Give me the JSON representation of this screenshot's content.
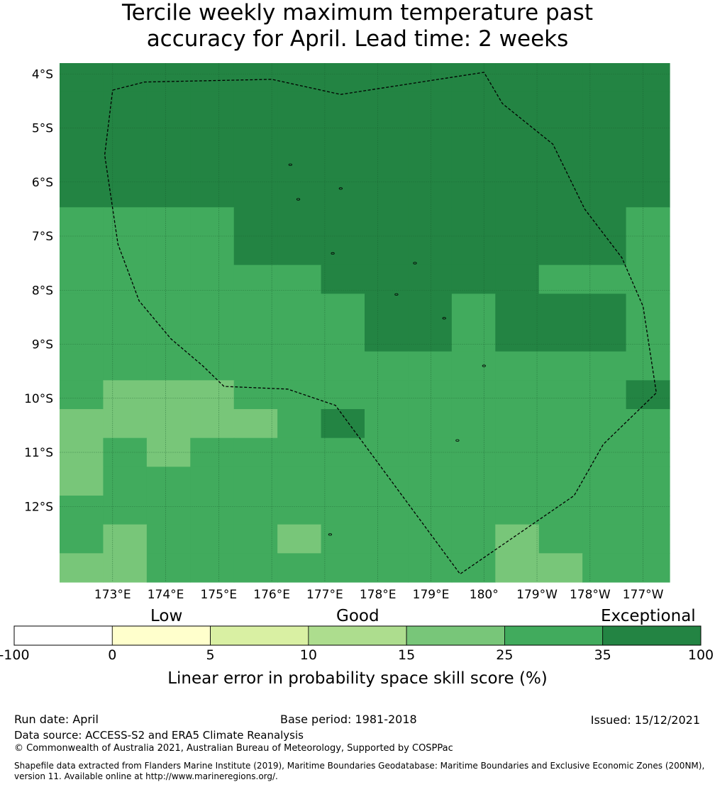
{
  "title_lines": [
    "Tercile weekly maximum temperature past",
    "accuracy for April. Lead time: 2 weeks"
  ],
  "map": {
    "lon_range": [
      172.0,
      183.5
    ],
    "lat_range": [
      -13.4,
      -3.8
    ],
    "lat_ticks": [
      {
        "value": -4,
        "label": "4°S"
      },
      {
        "value": -5,
        "label": "5°S"
      },
      {
        "value": -6,
        "label": "6°S"
      },
      {
        "value": -7,
        "label": "7°S"
      },
      {
        "value": -8,
        "label": "8°S"
      },
      {
        "value": -9,
        "label": "9°S"
      },
      {
        "value": -10,
        "label": "10°S"
      },
      {
        "value": -11,
        "label": "11°S"
      },
      {
        "value": -12,
        "label": "12°S"
      }
    ],
    "lon_ticks": [
      {
        "value": 173,
        "label": "173°E"
      },
      {
        "value": 174,
        "label": "174°E"
      },
      {
        "value": 175,
        "label": "175°E"
      },
      {
        "value": 176,
        "label": "176°E"
      },
      {
        "value": 177,
        "label": "177°E"
      },
      {
        "value": 178,
        "label": "178°E"
      },
      {
        "value": 179,
        "label": "179°E"
      },
      {
        "value": 180,
        "label": "180°"
      },
      {
        "value": 181,
        "label": "179°W"
      },
      {
        "value": 182,
        "label": "178°W"
      },
      {
        "value": 183,
        "label": "177°W"
      }
    ],
    "grid_cols": 14,
    "grid_rows": 18,
    "class_colors": {
      "15-25": "#78c679",
      "25-35": "#41ab5d",
      "35-100": "#238443"
    },
    "skill_grid": [
      "HHHHHHHHHHHHHH",
      "HHHHHHHHHHHHHH",
      "HHHHHHHHHHHHHH",
      "HHHHHHHHHHHHHH",
      "HHHHHHHHHHHHHH",
      "MMMMHHHHHHHHHM",
      "MMMMHHHHHHHHHM",
      "MMMMMMHHHHHMMM",
      "MMMMMMMHHMHHHM",
      "MMMMMMMHHMHHHM",
      "MMMMMMMMMMMMMM",
      "MLLLMMMMMMMMMH",
      "LLLLLMHMMMMMMM",
      "LMLMMMMMMMMMMM",
      "LMMMMMMMMMMMMM",
      "MMMMMMMMMMMMMM",
      "MLMMMLMMMMLMMM",
      "LLMMMMMMMMLLMM"
    ],
    "eez_boundary": [
      [
        173.0,
        -4.3
      ],
      [
        173.6,
        -4.15
      ],
      [
        176.0,
        -4.1
      ],
      [
        177.3,
        -4.38
      ],
      [
        180.0,
        -3.97
      ],
      [
        180.35,
        -4.55
      ],
      [
        181.3,
        -5.3
      ],
      [
        181.9,
        -6.5
      ],
      [
        182.6,
        -7.4
      ],
      [
        183.0,
        -8.3
      ],
      [
        183.25,
        -9.9
      ],
      [
        182.25,
        -10.85
      ],
      [
        181.7,
        -11.8
      ],
      [
        179.55,
        -13.25
      ],
      [
        177.2,
        -10.13
      ],
      [
        176.3,
        -9.83
      ],
      [
        175.1,
        -9.78
      ],
      [
        174.7,
        -9.4
      ],
      [
        174.1,
        -8.9
      ],
      [
        173.5,
        -8.2
      ],
      [
        173.1,
        -7.15
      ],
      [
        172.85,
        -5.5
      ],
      [
        173.0,
        -4.3
      ]
    ],
    "islands": [
      [
        176.35,
        -5.68
      ],
      [
        177.3,
        -6.12
      ],
      [
        176.5,
        -6.32
      ],
      [
        177.15,
        -7.32
      ],
      [
        178.7,
        -7.5
      ],
      [
        178.35,
        -8.08
      ],
      [
        179.25,
        -8.52
      ],
      [
        180.0,
        -9.4
      ],
      [
        179.5,
        -10.78
      ],
      [
        177.1,
        -12.52
      ]
    ]
  },
  "colorbar": {
    "categories": [
      {
        "label": "Low"
      },
      {
        "label": "Good"
      },
      {
        "label": "Exceptional"
      }
    ],
    "bins": [
      {
        "color": "#ffffff"
      },
      {
        "color": "#ffffcc"
      },
      {
        "color": "#d9f0a3"
      },
      {
        "color": "#addd8e"
      },
      {
        "color": "#78c679"
      },
      {
        "color": "#41ab5d"
      },
      {
        "color": "#238443"
      }
    ],
    "ticks": [
      "-100",
      "0",
      "5",
      "10",
      "15",
      "25",
      "35",
      "100"
    ],
    "title": "Linear error in probability space skill score (%)"
  },
  "footer": {
    "run_date": "Run date: April",
    "base_period": "Base period: 1981-2018",
    "issued": "Issued: 15/12/2021",
    "data_source": "Data source: ACCESS-S2 and ERA5 Climate Reanalysis",
    "copyright": "© Commonwealth of Australia 2021, Australian Bureau of Meteorology, Supported by COSPPac",
    "shapefile_line1": "Shapefile data extracted from Flanders Marine Institute (2019), Maritime Boundaries Geodatabase: Maritime Boundaries and Exclusive Economic Zones (200NM),",
    "shapefile_line2": "version 11. Available online at http://www.marineregions.org/."
  }
}
